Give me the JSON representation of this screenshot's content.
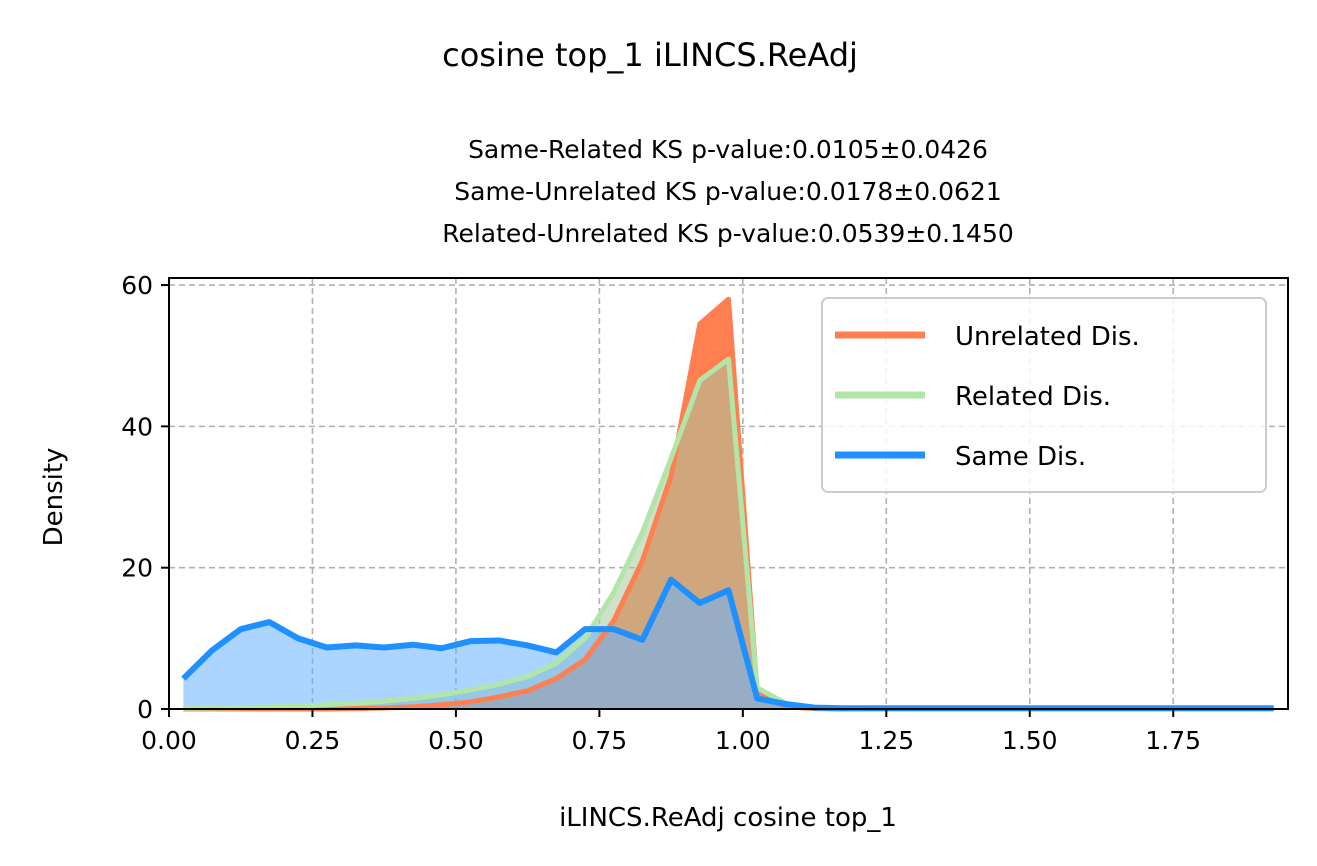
{
  "chart_data": {
    "type": "area",
    "title": "cosine top_1 iLINCS.ReAdj",
    "subtitle_lines": [
      "Same-Related KS p-value:0.0105±0.0426",
      "Same-Unrelated KS p-value:0.0178±0.0621",
      "Related-Unrelated KS p-value:0.0539±0.1450"
    ],
    "xlabel": "iLINCS.ReAdj cosine top_1",
    "ylabel": "Density",
    "xlim": [
      0.0,
      1.95
    ],
    "ylim": [
      0,
      61
    ],
    "xticks": [
      0.0,
      0.25,
      0.5,
      0.75,
      1.0,
      1.25,
      1.5,
      1.75
    ],
    "xtick_labels": [
      "0.00",
      "0.25",
      "0.50",
      "0.75",
      "1.00",
      "1.25",
      "1.50",
      "1.75"
    ],
    "yticks": [
      0,
      20,
      40,
      60
    ],
    "ytick_labels": [
      "0",
      "20",
      "40",
      "60"
    ],
    "grid": true,
    "legend_position": "top-right",
    "series": [
      {
        "name": "Unrelated Dis.",
        "line_color": "#FF7F50",
        "fill_color": "#FF7F50",
        "fill_opacity": 1.0,
        "line_width": 5,
        "x": [
          0.025,
          0.075,
          0.125,
          0.175,
          0.225,
          0.275,
          0.325,
          0.375,
          0.425,
          0.475,
          0.525,
          0.575,
          0.625,
          0.675,
          0.725,
          0.775,
          0.825,
          0.875,
          0.925,
          0.975,
          1.025,
          1.075,
          1.125,
          1.175,
          1.225,
          1.275,
          1.325,
          1.375,
          1.425,
          1.475,
          1.525,
          1.575,
          1.625,
          1.675,
          1.725,
          1.775,
          1.825,
          1.875,
          1.925
        ],
        "values": [
          0,
          0,
          0,
          0,
          0,
          0,
          0.05,
          0.15,
          0.3,
          0.6,
          1.0,
          1.7,
          2.6,
          4.3,
          7.0,
          12.5,
          21.0,
          33.0,
          54.5,
          58.0,
          2.5,
          0.3,
          0.05,
          0,
          0,
          0,
          0,
          0,
          0,
          0,
          0,
          0,
          0,
          0,
          0,
          0,
          0,
          0,
          0
        ]
      },
      {
        "name": "Related Dis.",
        "line_color": "#B2E6A8",
        "fill_color": "#AAC9A0",
        "fill_opacity": 0.55,
        "line_width": 5,
        "x": [
          0.025,
          0.075,
          0.125,
          0.175,
          0.225,
          0.275,
          0.325,
          0.375,
          0.425,
          0.475,
          0.525,
          0.575,
          0.625,
          0.675,
          0.725,
          0.775,
          0.825,
          0.875,
          0.925,
          0.975,
          1.025,
          1.075,
          1.125,
          1.175,
          1.225,
          1.275,
          1.325,
          1.375,
          1.425,
          1.475,
          1.525,
          1.575,
          1.625,
          1.675,
          1.725,
          1.775,
          1.825,
          1.875,
          1.925
        ],
        "values": [
          0.1,
          0.15,
          0.2,
          0.3,
          0.4,
          0.6,
          0.8,
          1.1,
          1.5,
          2.0,
          2.7,
          3.5,
          4.6,
          6.5,
          10.0,
          16.5,
          25.0,
          35.5,
          46.5,
          49.5,
          3.0,
          0.8,
          0.2,
          0.05,
          0,
          0,
          0,
          0,
          0,
          0,
          0,
          0,
          0,
          0,
          0,
          0,
          0,
          0,
          0
        ]
      },
      {
        "name": "Same Dis.",
        "line_color": "#1E90FF",
        "fill_color": "#66B3FF",
        "fill_opacity": 0.55,
        "line_width": 6,
        "x": [
          0.025,
          0.075,
          0.125,
          0.175,
          0.225,
          0.275,
          0.325,
          0.375,
          0.425,
          0.475,
          0.525,
          0.575,
          0.625,
          0.675,
          0.725,
          0.775,
          0.825,
          0.875,
          0.925,
          0.975,
          1.025,
          1.075,
          1.125,
          1.175,
          1.225,
          1.275,
          1.325,
          1.375,
          1.425,
          1.475,
          1.525,
          1.575,
          1.625,
          1.675,
          1.725,
          1.775,
          1.825,
          1.875,
          1.925
        ],
        "values": [
          4.3,
          8.3,
          11.3,
          12.3,
          10.0,
          8.7,
          9.0,
          8.7,
          9.1,
          8.6,
          9.6,
          9.7,
          9.0,
          8.0,
          11.3,
          11.3,
          9.8,
          18.3,
          15.0,
          16.8,
          1.5,
          0.7,
          0.2,
          0.1,
          0.1,
          0.1,
          0.1,
          0.1,
          0.1,
          0.1,
          0.1,
          0.1,
          0.1,
          0.1,
          0.1,
          0.1,
          0.1,
          0.1,
          0.1
        ]
      }
    ]
  }
}
